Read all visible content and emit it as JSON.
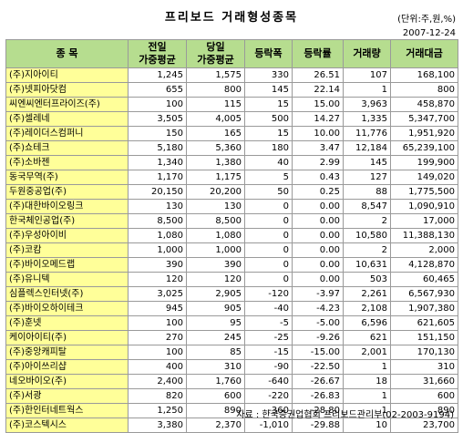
{
  "title": "프리보드 거래형성종목",
  "unit": "(단위:주,원,%)",
  "date": "2007-12-24",
  "columns": {
    "name": "종 목",
    "prev_avg_line1": "전일",
    "prev_avg_line2": "가중평균",
    "today_avg_line1": "당일",
    "today_avg_line2": "가중평균",
    "change": "등락폭",
    "change_rate": "등락률",
    "volume": "거래량",
    "amount": "거래대금"
  },
  "rows": [
    [
      "(주)지아이티",
      "1,245",
      "1,575",
      "330",
      "26.51",
      "107",
      "168,100"
    ],
    [
      "(주)넷피아닷컴",
      "655",
      "800",
      "145",
      "22.14",
      "1",
      "800"
    ],
    [
      "씨엔씨엔터프라이즈(주)",
      "100",
      "115",
      "15",
      "15.00",
      "3,963",
      "458,870"
    ],
    [
      "(주)셀레네",
      "3,505",
      "4,005",
      "500",
      "14.27",
      "1,335",
      "5,347,700"
    ],
    [
      "(주)레이더스컴퍼니",
      "150",
      "165",
      "15",
      "10.00",
      "11,776",
      "1,951,920"
    ],
    [
      "(주)쇼테크",
      "5,180",
      "5,360",
      "180",
      "3.47",
      "12,184",
      "65,239,100"
    ],
    [
      "(주)소바젠",
      "1,340",
      "1,380",
      "40",
      "2.99",
      "145",
      "199,900"
    ],
    [
      "동국무역(주)",
      "1,170",
      "1,175",
      "5",
      "0.43",
      "127",
      "149,020"
    ],
    [
      "두원중공업(주)",
      "20,150",
      "20,200",
      "50",
      "0.25",
      "88",
      "1,775,500"
    ],
    [
      "(주)대한바이오링크",
      "130",
      "130",
      "0",
      "0.00",
      "8,547",
      "1,090,910"
    ],
    [
      "한국체인공업(주)",
      "8,500",
      "8,500",
      "0",
      "0.00",
      "2",
      "17,000"
    ],
    [
      "(주)우성아이비",
      "1,080",
      "1,080",
      "0",
      "0.00",
      "10,580",
      "11,388,130"
    ],
    [
      "(주)코캄",
      "1,000",
      "1,000",
      "0",
      "0.00",
      "2",
      "2,000"
    ],
    [
      "(주)바이오메드랩",
      "390",
      "390",
      "0",
      "0.00",
      "10,631",
      "4,128,870"
    ],
    [
      "(주)유니텍",
      "120",
      "120",
      "0",
      "0.00",
      "503",
      "60,465"
    ],
    [
      "심플렉스인터넷(주)",
      "3,025",
      "2,905",
      "-120",
      "-3.97",
      "2,261",
      "6,567,930"
    ],
    [
      "(주)바이오하이테크",
      "945",
      "905",
      "-40",
      "-4.23",
      "2,108",
      "1,907,380"
    ],
    [
      "(주)훈넷",
      "100",
      "95",
      "-5",
      "-5.00",
      "6,596",
      "621,605"
    ],
    [
      "케이아이티(주)",
      "270",
      "245",
      "-25",
      "-9.26",
      "621",
      "151,150"
    ],
    [
      "(주)중앙캐피탈",
      "100",
      "85",
      "-15",
      "-15.00",
      "2,001",
      "170,130"
    ],
    [
      "(주)아이쓰리샵",
      "400",
      "310",
      "-90",
      "-22.50",
      "1",
      "310"
    ],
    [
      "네오바이오(주)",
      "2,400",
      "1,760",
      "-640",
      "-26.67",
      "18",
      "31,660"
    ],
    [
      "(주)서광",
      "820",
      "600",
      "-220",
      "-26.83",
      "1",
      "600"
    ],
    [
      "(주)한인터네트웍스",
      "1,250",
      "890",
      "-360",
      "-28.80",
      "1",
      "890"
    ],
    [
      "(주)코스텍시스",
      "3,380",
      "2,370",
      "-1,010",
      "-29.88",
      "10",
      "23,700"
    ]
  ],
  "source": "자료 : 한국증권업협회 프리보드관리부(02-2003-9194)"
}
